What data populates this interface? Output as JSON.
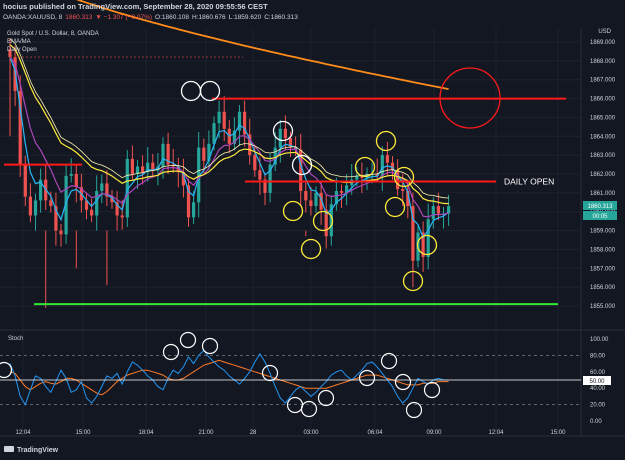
{
  "header": {
    "publisher": "hocius published on TradingView.com, September 28, 2020 09:55:56 CEST",
    "symbol": "OANDA:XAUUSD, 8",
    "last": "1860.313",
    "change": "▼ −1.307 (−0.07%)",
    "open": "O:1860.108",
    "high": "H:1860.676",
    "low": "L:1859.620",
    "close": "C:1860.313"
  },
  "legend": {
    "title": "Gold Spot / U.S. Dollar, 8, OANDA",
    "ind1": "EMA/MA",
    "ind2": "Daily Open"
  },
  "currency": "USD",
  "price_tag": "1860.313",
  "countdown": "00:05",
  "stoch_label": "Stoch",
  "stoch_tag": "50.00",
  "annotation_text": "DAILY OPEN",
  "footer_logo": "TradingView",
  "colors": {
    "background": "#131722",
    "up": "#26a69a",
    "down": "#ef5350",
    "ema_cyan": "#29b6f6",
    "ma_violet": "#ab47bc",
    "ma_yellow": "#ffeb3b",
    "ma_orange": "#ff8c1a",
    "annotation_red": "#ff1a1a",
    "annotation_green": "#33e833",
    "stoch_k": "#2196f3",
    "stoch_d": "#ff7b25"
  },
  "chart_data": [
    {
      "type": "candlestick",
      "yaxis_ticks": [
        1869,
        1868,
        1867,
        1866,
        1865,
        1864,
        1863,
        1862,
        1861,
        1860,
        1859,
        1858,
        1857,
        1856,
        1855
      ],
      "ylim": [
        1854.4,
        1869.4
      ],
      "xaxis_ticks": [
        "12:04",
        "15:00",
        "18:04",
        "21:00",
        "28",
        "03:00",
        "06:04",
        "09:00",
        "12:04",
        "15:00"
      ],
      "bars": 87,
      "ohlc_close": [
        1868.2,
        1866.4,
        1862.5,
        1860.8,
        1859.8,
        1860.6,
        1861.7,
        1860.6,
        1860.3,
        1859.0,
        1858.8,
        1861.9,
        1862.0,
        1861.3,
        1860.6,
        1860.1,
        1859.8,
        1861.1,
        1861.5,
        1860.8,
        1860.5,
        1859.8,
        1859.7,
        1862.8,
        1862.0,
        1862.4,
        1862.1,
        1862.6,
        1862.2,
        1862.4,
        1863.6,
        1862.5,
        1862.4,
        1862.1,
        1861.4,
        1859.7,
        1860.5,
        1863.4,
        1862.7,
        1863.6,
        1864.7,
        1865.3,
        1864.4,
        1863.6,
        1864.3,
        1865.3,
        1864.1,
        1863.0,
        1862.2,
        1861.7,
        1861.0,
        1862.5,
        1863.4,
        1864.4,
        1863.9,
        1863.4,
        1863.3,
        1861.1,
        1860.6,
        1860.3,
        1861.0,
        1860.1,
        1858.7,
        1860.4,
        1861.1,
        1861.0,
        1861.4,
        1861.7,
        1861.9,
        1861.8,
        1862.0,
        1862.0,
        1861.9,
        1863.0,
        1862.6,
        1862.2,
        1861.2,
        1861.1,
        1860.3,
        1857.4,
        1858.9,
        1857.6,
        1859.6,
        1860.3,
        1859.9,
        1859.9,
        1860.3
      ],
      "series": [
        {
          "name": "EMA/MA",
          "note": "fast EMA (cyan)"
        },
        {
          "name": "Daily Open"
        }
      ],
      "horizontal_lines": [
        {
          "price": 1866.0,
          "color": "red",
          "label": ""
        },
        {
          "price": 1861.6,
          "color": "red",
          "label": "DAILY OPEN"
        },
        {
          "price": 1862.5,
          "color": "red",
          "label": ""
        },
        {
          "price": 1855.1,
          "color": "green",
          "label": ""
        }
      ]
    },
    {
      "type": "line",
      "name": "Stoch",
      "yaxis_ticks": [
        100,
        80,
        60,
        40,
        20,
        0
      ],
      "ylim": [
        -5,
        105
      ],
      "levels": [
        80,
        20
      ],
      "current": 50.0
    }
  ]
}
